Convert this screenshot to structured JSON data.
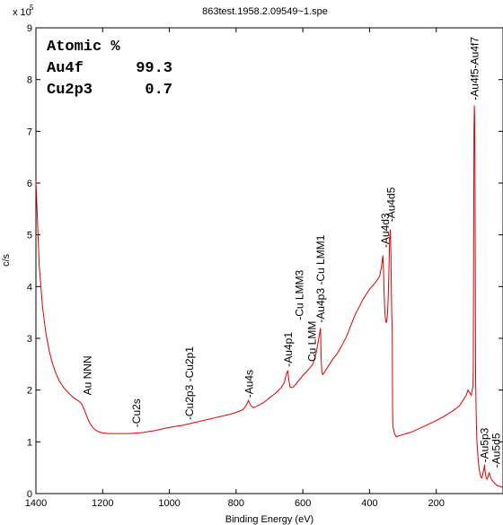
{
  "chart_data": {
    "type": "line",
    "title": "863test.1958.2.09549~1.spe",
    "xlabel": "Binding Energy (eV)",
    "ylabel": "c/s",
    "y_multiplier": "x 10",
    "y_exponent": "5",
    "xlim": [
      1400,
      0
    ],
    "ylim": [
      0,
      9
    ],
    "x_reversed": true,
    "grid": false,
    "legend": "none",
    "line_color": "#e00000",
    "x_ticks": [
      1400,
      1200,
      1000,
      800,
      600,
      400,
      200
    ],
    "y_ticks": [
      0,
      1,
      2,
      3,
      4,
      5,
      6,
      7,
      8,
      9
    ],
    "series": [
      {
        "x": [
          1400,
          1390,
          1380,
          1370,
          1360,
          1350,
          1340,
          1330,
          1320,
          1310,
          1300,
          1290,
          1280,
          1270,
          1262,
          1255,
          1248,
          1240,
          1230,
          1220,
          1210,
          1200,
          1180,
          1160,
          1140,
          1120,
          1100,
          1080,
          1060,
          1040,
          1020,
          1000,
          980,
          960,
          940,
          920,
          900,
          880,
          860,
          840,
          820,
          800,
          780,
          770,
          763,
          758,
          750,
          740,
          720,
          700,
          680,
          665,
          655,
          650,
          645,
          642,
          638,
          630,
          620,
          610,
          600,
          590,
          580,
          570,
          565,
          560,
          555,
          550,
          547,
          545,
          543,
          540,
          535,
          530,
          520,
          510,
          500,
          490,
          480,
          470,
          460,
          450,
          440,
          430,
          420,
          410,
          400,
          390,
          380,
          370,
          365,
          362,
          360,
          358,
          356,
          354,
          352,
          350,
          348,
          346,
          344,
          342,
          340,
          338,
          337,
          336,
          335,
          334,
          333,
          332,
          331,
          330,
          325,
          320,
          310,
          300,
          290,
          280,
          270,
          260,
          250,
          240,
          230,
          220,
          210,
          200,
          190,
          180,
          170,
          160,
          150,
          140,
          130,
          120,
          110,
          105,
          100,
          95,
          92,
          90,
          89,
          88,
          87,
          86,
          85,
          84,
          83,
          82,
          80,
          78,
          76,
          74,
          72,
          70,
          68,
          66,
          64,
          62,
          60,
          58,
          56,
          55,
          54,
          52,
          50,
          48,
          46,
          44,
          42,
          40,
          38,
          35,
          30,
          25,
          20,
          15,
          10,
          5,
          0
        ],
        "y": [
          6.05,
          4.4,
          3.6,
          3.1,
          2.75,
          2.5,
          2.32,
          2.18,
          2.08,
          2.0,
          1.93,
          1.87,
          1.82,
          1.78,
          1.72,
          1.62,
          1.5,
          1.38,
          1.28,
          1.22,
          1.19,
          1.17,
          1.16,
          1.16,
          1.16,
          1.16,
          1.17,
          1.18,
          1.2,
          1.22,
          1.25,
          1.28,
          1.3,
          1.32,
          1.35,
          1.38,
          1.41,
          1.44,
          1.47,
          1.5,
          1.53,
          1.57,
          1.62,
          1.7,
          1.8,
          1.72,
          1.66,
          1.68,
          1.75,
          1.85,
          1.95,
          2.05,
          2.15,
          2.3,
          2.38,
          2.2,
          2.05,
          2.05,
          2.12,
          2.2,
          2.28,
          2.35,
          2.42,
          2.5,
          2.6,
          2.72,
          2.9,
          3.08,
          3.2,
          2.6,
          2.35,
          2.3,
          2.35,
          2.4,
          2.5,
          2.6,
          2.68,
          2.78,
          2.9,
          3.02,
          3.18,
          3.35,
          3.5,
          3.62,
          3.75,
          3.85,
          3.95,
          4.02,
          4.1,
          4.2,
          4.35,
          4.5,
          4.6,
          4.3,
          3.8,
          3.5,
          3.35,
          3.3,
          3.35,
          3.5,
          3.8,
          4.3,
          4.9,
          5.1,
          4.95,
          4.6,
          4.1,
          3.7,
          3.35,
          3.15,
          1.6,
          1.3,
          1.15,
          1.1,
          1.12,
          1.14,
          1.16,
          1.18,
          1.2,
          1.23,
          1.26,
          1.29,
          1.32,
          1.35,
          1.38,
          1.41,
          1.45,
          1.48,
          1.52,
          1.56,
          1.6,
          1.65,
          1.7,
          1.8,
          1.9,
          2.0,
          1.95,
          1.9,
          2.0,
          2.1,
          2.4,
          4.5,
          7.0,
          7.5,
          7.3,
          6.5,
          4.2,
          2.2,
          1.4,
          1.0,
          0.8,
          0.62,
          0.5,
          0.42,
          0.36,
          0.32,
          0.3,
          0.32,
          0.4,
          0.45,
          0.52,
          0.56,
          0.45,
          0.35,
          0.3,
          0.28,
          0.3,
          0.35,
          0.4,
          0.38,
          0.33,
          0.28,
          0.24,
          0.2,
          0.17,
          0.15,
          0.14,
          0.13,
          0.12
        ]
      }
    ],
    "peak_labels": [
      {
        "text": "Au NNN",
        "x": 1245,
        "y": 1.9
      },
      {
        "text": "-Cu2s",
        "x": 1098,
        "y": 1.28
      },
      {
        "text": "-Cu2p3 -Cu2p1",
        "x": 940,
        "y": 1.42
      },
      {
        "text": "-Au4s",
        "x": 760,
        "y": 1.85
      },
      {
        "text": "-Au4p1",
        "x": 643,
        "y": 2.45
      },
      {
        "text": "-Cu LMM3",
        "x": 610,
        "y": 3.35
      },
      {
        "text": "Cu LMM",
        "x": 572,
        "y": 2.55
      },
      {
        "text": "-Au4p3 -Cu LMM1",
        "x": 546,
        "y": 3.3
      },
      {
        "text": "-Au4d3",
        "x": 353,
        "y": 4.75
      },
      {
        "text": "-Au4d5",
        "x": 335,
        "y": 5.25
      },
      {
        "text": "-Au4f5-Au4f7",
        "x": 85,
        "y": 7.6
      },
      {
        "text": "-Au5p3",
        "x": 55,
        "y": 0.6
      },
      {
        "text": "-Au5d5",
        "x": 20,
        "y": 0.5
      }
    ]
  },
  "atomic_table": {
    "title": "Atomic %",
    "rows": [
      {
        "element": "Au4f",
        "value": "99.3"
      },
      {
        "element": "Cu2p3",
        "value": "0.7"
      }
    ]
  }
}
